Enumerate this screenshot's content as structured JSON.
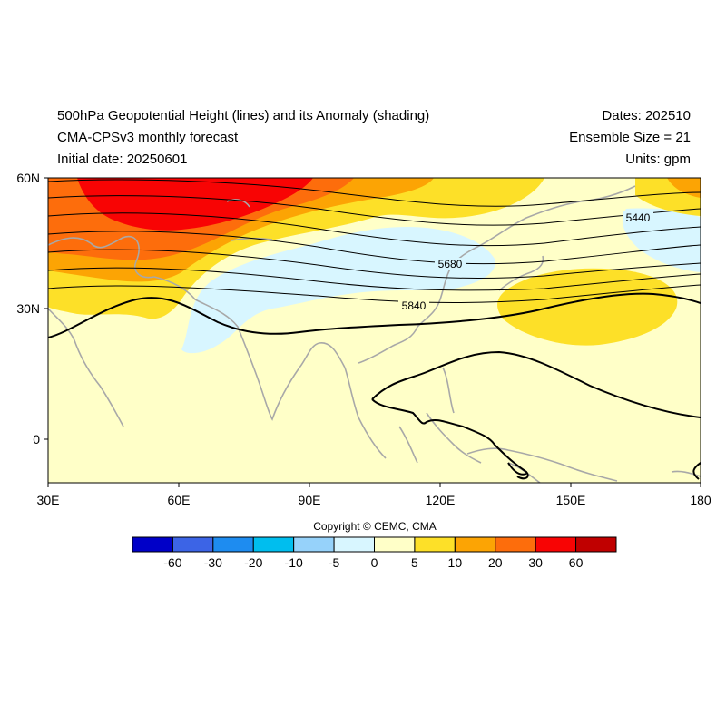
{
  "header": {
    "title": "500hPa Geopotential Height (lines) and its Anomaly (shading)",
    "model": "CMA-CPSv3 monthly forecast",
    "initial_date": "Initial date: 20250601",
    "dates": "Dates: 202510",
    "ensemble": "Ensemble Size = 21",
    "units": "Units: gpm"
  },
  "map": {
    "x_ticks": [
      "30E",
      "60E",
      "90E",
      "120E",
      "150E",
      "180"
    ],
    "y_ticks": [
      "60N",
      "30N",
      "0"
    ],
    "contour_labels": [
      "5440",
      "5680",
      "5840"
    ],
    "extent": {
      "lon": [
        30,
        180
      ],
      "lat": [
        -10,
        60
      ]
    }
  },
  "colorbar": {
    "labels": [
      "-60",
      "-30",
      "-20",
      "-10",
      "-5",
      "0",
      "5",
      "10",
      "20",
      "30",
      "60"
    ],
    "colors": [
      "#0000c8",
      "#3c64e6",
      "#1e8cf0",
      "#00beee",
      "#96d2fa",
      "#d8f6ff",
      "#ffffc8",
      "#fde028",
      "#fca404",
      "#fd6d0c",
      "#f80404",
      "#c00000"
    ]
  },
  "copyright": "Copyright © CEMC, CMA"
}
